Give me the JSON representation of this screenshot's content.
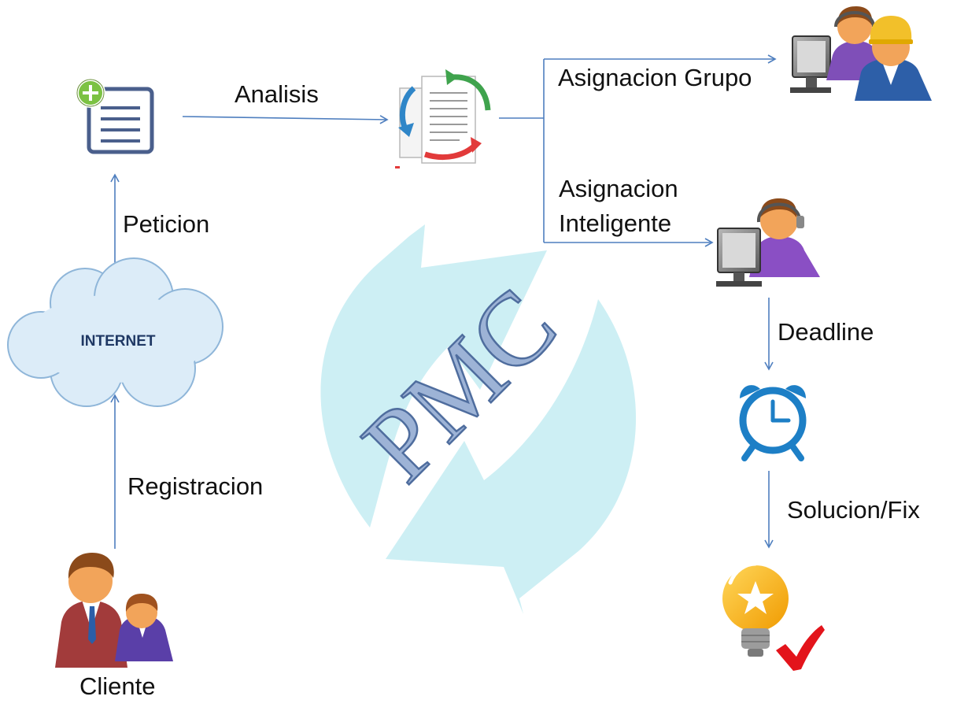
{
  "center": {
    "watermark": "PMC"
  },
  "cloud": {
    "label": "INTERNET"
  },
  "flow": {
    "client": "Cliente",
    "registration": "Registracion",
    "request": "Peticion",
    "analysis": "Analisis",
    "group_assignment": "Asignacion Grupo",
    "smart_assignment_line1": "Asignacion",
    "smart_assignment_line2": "Inteligente",
    "deadline": "Deadline",
    "solution": "Solucion/Fix"
  },
  "colors": {
    "connector": "#4f7fbf",
    "cycle_arrows": "#cdeff4",
    "watermark_fill": "#9db3d6",
    "watermark_stroke": "#4f6d9e",
    "cloud_fill": "#dcecf8",
    "cloud_stroke": "#8fb6d9",
    "cloud_text": "#1f3864",
    "clock": "#1d7fc6",
    "bulb": "#f5b21b",
    "check": "#e3141b"
  }
}
